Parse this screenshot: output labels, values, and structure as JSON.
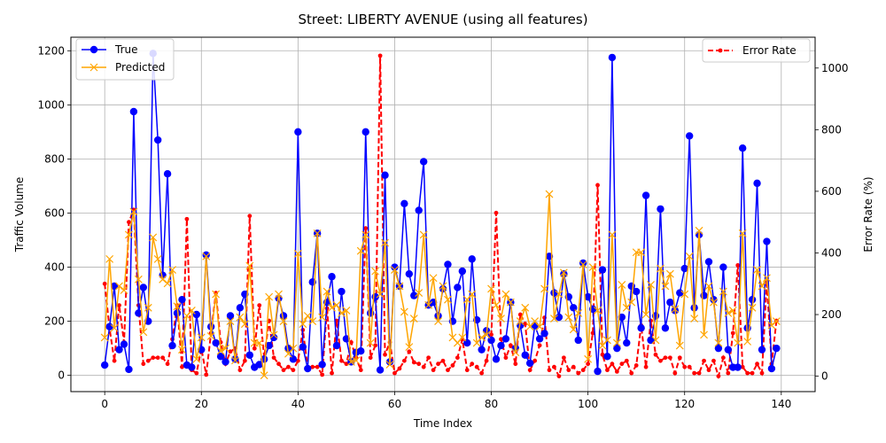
{
  "chart_data": {
    "type": "line",
    "title": "Street: LIBERTY AVENUE (using all features)",
    "xlabel": "Time Index",
    "ylabel_left": "Traffic Volume",
    "ylabel_right": "Error Rate (%)",
    "xlim": [
      -7,
      147
    ],
    "ylim_left": [
      -60,
      1250
    ],
    "ylim_right": [
      -50,
      1100
    ],
    "x_ticks": [
      0,
      20,
      40,
      60,
      80,
      100,
      120,
      140
    ],
    "y_ticks_left": [
      0,
      200,
      400,
      600,
      800,
      1000,
      1200
    ],
    "y_ticks_right": [
      0,
      200,
      400,
      600,
      800,
      1000
    ],
    "grid": true,
    "legend_left_position": "upper-left",
    "legend_right_position": "upper-right",
    "series": [
      {
        "name": "True",
        "axis": "left",
        "color": "#0000ff",
        "marker": "circle",
        "line": "solid",
        "values": [
          38,
          180,
          330,
          95,
          115,
          22,
          975,
          230,
          325,
          200,
          1190,
          870,
          370,
          745,
          110,
          230,
          280,
          38,
          30,
          225,
          95,
          445,
          180,
          120,
          70,
          50,
          220,
          60,
          250,
          300,
          75,
          30,
          40,
          60,
          110,
          140,
          285,
          220,
          100,
          60,
          900,
          105,
          25,
          345,
          525,
          40,
          270,
          365,
          110,
          310,
          135,
          50,
          85,
          90,
          900,
          230,
          290,
          20,
          740,
          50,
          400,
          330,
          635,
          375,
          295,
          610,
          790,
          260,
          270,
          220,
          320,
          410,
          200,
          325,
          385,
          120,
          430,
          205,
          95,
          165,
          130,
          60,
          110,
          135,
          270,
          100,
          185,
          75,
          45,
          185,
          135,
          155,
          440,
          305,
          215,
          375,
          290,
          250,
          130,
          415,
          290,
          245,
          15,
          390,
          70,
          1175,
          100,
          215,
          120,
          330,
          310,
          175,
          665,
          130,
          220,
          615,
          175,
          270,
          240,
          305,
          395,
          885,
          250,
          520,
          295,
          420,
          280,
          100,
          400,
          95,
          30,
          30,
          840,
          175,
          280,
          710,
          95,
          495,
          25,
          100
        ]
      },
      {
        "name": "Predicted",
        "axis": "left",
        "color": "#ffa500",
        "marker": "x",
        "line": "solid",
        "values": [
          140,
          430,
          175,
          330,
          315,
          520,
          605,
          355,
          160,
          250,
          510,
          430,
          355,
          340,
          390,
          255,
          95,
          220,
          240,
          60,
          140,
          440,
          145,
          300,
          90,
          100,
          200,
          55,
          215,
          190,
          405,
          120,
          120,
          0,
          290,
          150,
          300,
          200,
          80,
          100,
          450,
          190,
          220,
          200,
          525,
          215,
          310,
          250,
          260,
          230,
          240,
          50,
          55,
          460,
          520,
          120,
          385,
          300,
          490,
          40,
          390,
          330,
          235,
          105,
          210,
          305,
          520,
          260,
          360,
          200,
          330,
          280,
          140,
          120,
          140,
          280,
          300,
          120,
          140,
          150,
          320,
          260,
          210,
          300,
          270,
          85,
          200,
          250,
          180,
          200,
          180,
          320,
          670,
          210,
          300,
          380,
          215,
          170,
          230,
          410,
          60,
          400,
          240,
          110,
          130,
          520,
          120,
          335,
          250,
          270,
          455,
          455,
          225,
          335,
          130,
          395,
          330,
          375,
          245,
          110,
          300,
          440,
          210,
          535,
          150,
          330,
          270,
          120,
          310,
          230,
          240,
          120,
          525,
          125,
          250,
          390,
          330,
          360,
          185,
          200
        ]
      },
      {
        "name": "Error Rate",
        "axis": "right",
        "color": "#ff0000",
        "marker": "dot",
        "line": "dashed",
        "values": [
          300,
          155,
          50,
          230,
          110,
          500,
          540,
          230,
          40,
          50,
          60,
          60,
          60,
          40,
          120,
          230,
          30,
          510,
          20,
          10,
          90,
          5,
          140,
          270,
          110,
          40,
          80,
          90,
          20,
          50,
          520,
          90,
          230,
          60,
          180,
          60,
          40,
          20,
          30,
          20,
          50,
          150,
          30,
          30,
          30,
          5,
          220,
          10,
          180,
          50,
          40,
          110,
          60,
          20,
          480,
          60,
          100,
          1040,
          70,
          110,
          10,
          25,
          50,
          80,
          45,
          40,
          30,
          60,
          20,
          40,
          50,
          20,
          35,
          60,
          120,
          20,
          40,
          30,
          10,
          50,
          135,
          530,
          120,
          60,
          100,
          40,
          200,
          170,
          20,
          50,
          100,
          190,
          20,
          30,
          0,
          60,
          20,
          30,
          10,
          20,
          40,
          140,
          620,
          70,
          20,
          40,
          15,
          40,
          50,
          10,
          35,
          165,
          30,
          180,
          70,
          50,
          60,
          60,
          10,
          60,
          30,
          30,
          10,
          10,
          50,
          20,
          50,
          0,
          60,
          10,
          140,
          360,
          30,
          10,
          10,
          40,
          10,
          310,
          40,
          180
        ]
      }
    ]
  }
}
